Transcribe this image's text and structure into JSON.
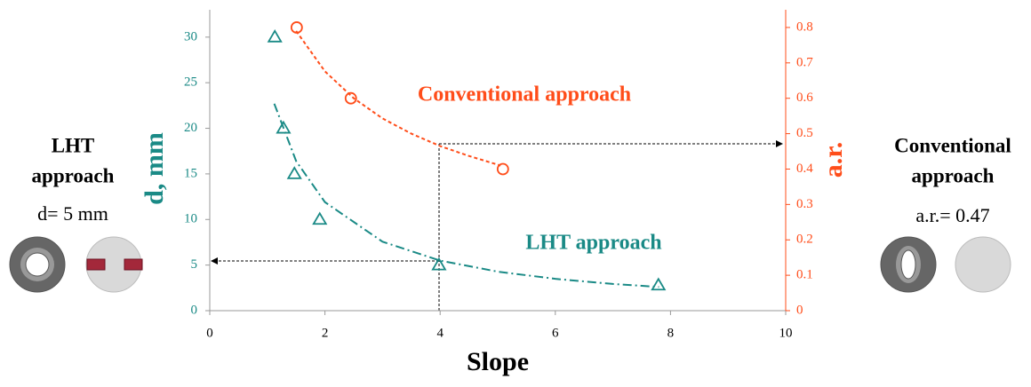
{
  "chart_data": {
    "type": "scatter",
    "x_label": "Slope",
    "y_label": "d, mm",
    "y2_label": "a.r.",
    "xlim": [
      0,
      10
    ],
    "xticks": [
      0,
      2,
      4,
      6,
      8,
      10
    ],
    "ylim": [
      0,
      33
    ],
    "yticks": [
      0,
      5,
      10,
      15,
      20,
      25,
      30
    ],
    "y2lim": [
      0,
      0.85
    ],
    "y2ticks": [
      0,
      0.1,
      0.2,
      0.3,
      0.4,
      0.5,
      0.6,
      0.7,
      0.8
    ],
    "series": [
      {
        "name": "LHT approach",
        "color": "#1a8a86",
        "marker": "triangle",
        "x": [
          1.13,
          1.28,
          1.47,
          1.91,
          3.98,
          7.79
        ],
        "values": [
          30,
          20,
          15,
          10,
          5,
          2.8
        ],
        "trend": {
          "x": [
            1.12,
            1.5,
            2,
            3,
            4,
            5,
            6,
            7,
            7.8
          ],
          "values": [
            22.7,
            16.4,
            11.9,
            7.56,
            5.49,
            4.28,
            3.49,
            2.93,
            2.6
          ],
          "dash": "10 4 2 4"
        }
      },
      {
        "name": "Conventional approach",
        "color": "#ff4d1a",
        "marker": "circle",
        "axis": "y2",
        "x": [
          1.51,
          2.45,
          5.09
        ],
        "values": [
          0.8,
          0.6,
          0.4
        ],
        "trend": {
          "x": [
            1.5,
            2,
            2.5,
            3,
            3.5,
            4,
            4.5,
            5.05
          ],
          "values": [
            0.79,
            0.676,
            0.6,
            0.543,
            0.5,
            0.465,
            0.437,
            0.41
          ],
          "dash": "4 3"
        }
      }
    ],
    "annotations": [
      "LHT",
      "approach",
      "d= 5 mm",
      "Conventional",
      "approach",
      "a.r.= 0.47"
    ]
  }
}
